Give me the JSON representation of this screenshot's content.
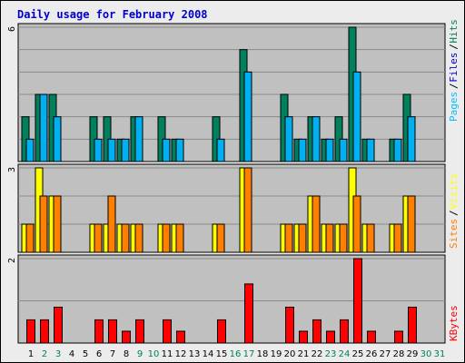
{
  "chart_data": {
    "type": "bar",
    "title": "Daily usage for February 2008",
    "days": [
      "1",
      "2",
      "3",
      "4",
      "5",
      "6",
      "7",
      "8",
      "9",
      "10",
      "11",
      "12",
      "13",
      "14",
      "15",
      "16",
      "17",
      "18",
      "19",
      "20",
      "21",
      "22",
      "23",
      "24",
      "25",
      "26",
      "27",
      "28",
      "29",
      "30",
      "31"
    ],
    "weekend_days": [
      "2",
      "3",
      "9",
      "10",
      "16",
      "17",
      "23",
      "24",
      "30",
      "31"
    ],
    "colors": {
      "background": "#c0c0c0",
      "frame": "#ececec",
      "title": "#0000cc",
      "hits": "#00805c",
      "files": "#00b0f0",
      "pages": "#00c0ff",
      "visits": "#ffff00",
      "sites": "#ff8000",
      "kbytes": "#ff0000",
      "weekday_label": "#000000",
      "weekend_label": "#00805c"
    },
    "panels": [
      {
        "id": "hits-files-pages",
        "ymax_label": "6",
        "ymax": 6,
        "legend": [
          {
            "text": "Pages",
            "color": "#00c0ff"
          },
          {
            "text": "Files",
            "color": "#0000cc"
          },
          {
            "text": "Hits",
            "color": "#00805c"
          }
        ],
        "series": [
          {
            "name": "Hits",
            "color": "#00805c",
            "values": [
              2,
              3,
              3,
              0,
              0,
              2,
              2,
              1,
              2,
              0,
              2,
              1,
              0,
              0,
              2,
              0,
              5,
              0,
              0,
              3,
              1,
              2,
              1,
              2,
              6,
              1,
              0,
              1,
              3,
              0,
              0
            ]
          },
          {
            "name": "Files",
            "color": "#00b0f0",
            "values": [
              1,
              3,
              2,
              0,
              0,
              1,
              1,
              1,
              2,
              0,
              1,
              1,
              0,
              0,
              1,
              0,
              4,
              0,
              0,
              2,
              1,
              2,
              1,
              1,
              4,
              1,
              0,
              1,
              2,
              0,
              0
            ]
          }
        ]
      },
      {
        "id": "visits-sites",
        "ymax_label": "3",
        "ymax": 3,
        "legend": [
          {
            "text": "Sites",
            "color": "#ff8000"
          },
          {
            "text": "Visits",
            "color": "#ffff00"
          }
        ],
        "series": [
          {
            "name": "Visits",
            "color": "#ffff00",
            "values": [
              1,
              3,
              2,
              0,
              0,
              1,
              1,
              1,
              1,
              0,
              1,
              1,
              0,
              0,
              1,
              0,
              3,
              0,
              0,
              1,
              1,
              2,
              1,
              1,
              3,
              1,
              0,
              1,
              2,
              0,
              0
            ]
          },
          {
            "name": "Sites",
            "color": "#ff8000",
            "values": [
              1,
              2,
              2,
              0,
              0,
              1,
              2,
              1,
              1,
              0,
              1,
              1,
              0,
              0,
              1,
              0,
              3,
              0,
              0,
              1,
              1,
              2,
              1,
              1,
              2,
              1,
              0,
              1,
              2,
              0,
              0
            ]
          }
        ]
      },
      {
        "id": "kbytes",
        "ymax_label": "2",
        "ymax": 2,
        "legend": [
          {
            "text": "KBytes",
            "color": "#ff0000"
          }
        ],
        "series": [
          {
            "name": "KBytes",
            "color": "#ff0000",
            "values": [
              0.55,
              0.55,
              0.85,
              0,
              0,
              0.55,
              0.55,
              0.28,
              0.55,
              0,
              0.55,
              0.28,
              0,
              0,
              0.55,
              0,
              1.4,
              0,
              0,
              0.85,
              0.28,
              0.55,
              0.28,
              0.55,
              2.0,
              0.28,
              0,
              0.28,
              0.85,
              0,
              0
            ]
          }
        ]
      }
    ]
  }
}
